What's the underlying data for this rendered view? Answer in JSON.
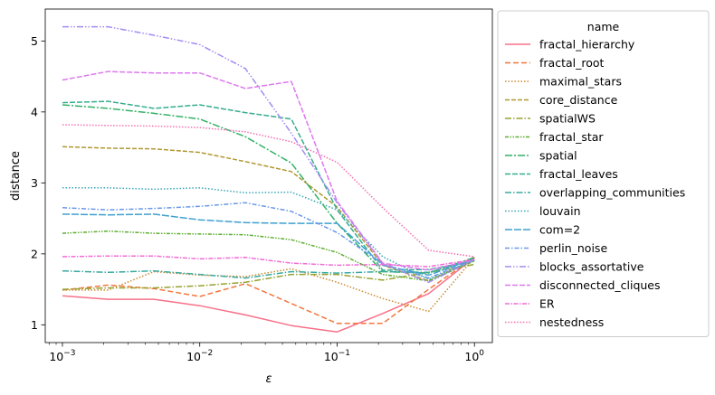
{
  "chart_data": {
    "type": "line",
    "xlabel": "ε",
    "ylabel": "distance",
    "xscale": "log",
    "xlim": [
      0.00075,
      1.35
    ],
    "ylim": [
      0.75,
      5.45
    ],
    "x": [
      0.001,
      0.00215,
      0.00464,
      0.01,
      0.0215,
      0.0464,
      0.1,
      0.215,
      0.464,
      1.0
    ],
    "x_ticks": [
      {
        "value": 0.001,
        "base": "10",
        "exp": "−3"
      },
      {
        "value": 0.01,
        "base": "10",
        "exp": "−2"
      },
      {
        "value": 0.1,
        "base": "10",
        "exp": "−1"
      },
      {
        "value": 1,
        "base": "10",
        "exp": "0"
      }
    ],
    "y_ticks": [
      1,
      2,
      3,
      4,
      5
    ],
    "y_tick_labels": [
      "1",
      "2",
      "3",
      "4",
      "5"
    ],
    "legend": {
      "title": "name",
      "placement": "right-outside"
    },
    "series": [
      {
        "name": "fractal_hierarchy",
        "color": "#f77189",
        "dash": "",
        "values": [
          1.41,
          1.36,
          1.36,
          1.27,
          1.14,
          0.99,
          0.9,
          1.16,
          1.44,
          1.95
        ]
      },
      {
        "name": "fractal_root",
        "color": "#f3763d",
        "dash": "6,3",
        "values": [
          1.49,
          1.56,
          1.51,
          1.4,
          1.58,
          1.3,
          1.02,
          1.02,
          1.5,
          1.95
        ]
      },
      {
        "name": "maximal_stars",
        "color": "#cc8a30",
        "dash": "1.5,2",
        "values": [
          1.49,
          1.49,
          1.75,
          1.7,
          1.68,
          1.79,
          1.6,
          1.37,
          1.19,
          1.95
        ]
      },
      {
        "name": "core_distance",
        "color": "#b09831",
        "dash": "5,2",
        "values": [
          3.51,
          3.49,
          3.48,
          3.43,
          3.3,
          3.16,
          2.66,
          1.84,
          1.62,
          1.92
        ]
      },
      {
        "name": "spatialWS",
        "color": "#96a231",
        "dash": "7,2,1.5,2",
        "values": [
          1.5,
          1.52,
          1.52,
          1.55,
          1.6,
          1.71,
          1.71,
          1.63,
          1.74,
          1.85
        ]
      },
      {
        "name": "fractal_star",
        "color": "#5dae31",
        "dash": "4,1.5,1.5,1.5,1.5,1.5",
        "values": [
          2.29,
          2.32,
          2.29,
          2.28,
          2.27,
          2.2,
          2.02,
          1.71,
          1.62,
          1.9
        ]
      },
      {
        "name": "spatial",
        "color": "#32b166",
        "dash": "8,2,2,2",
        "values": [
          4.1,
          4.05,
          3.98,
          3.9,
          3.65,
          3.28,
          2.43,
          1.75,
          1.73,
          1.95
        ]
      },
      {
        "name": "fractal_leaves",
        "color": "#36ad8e",
        "dash": "6,2",
        "values": [
          4.13,
          4.15,
          4.05,
          4.1,
          3.99,
          3.9,
          2.62,
          1.77,
          1.78,
          1.9
        ]
      },
      {
        "name": "overlapping_communities",
        "color": "#38aaa1",
        "dash": "7,2,1.5,2",
        "values": [
          1.76,
          1.74,
          1.76,
          1.71,
          1.66,
          1.75,
          1.73,
          1.75,
          1.74,
          1.92
        ]
      },
      {
        "name": "louvain",
        "color": "#3aa6b6",
        "dash": "1.5,2",
        "values": [
          2.93,
          2.93,
          2.91,
          2.93,
          2.86,
          2.87,
          2.62,
          1.96,
          1.64,
          1.91
        ]
      },
      {
        "name": "com=2",
        "color": "#3ea0d0",
        "dash": "8,2",
        "values": [
          2.56,
          2.55,
          2.56,
          2.48,
          2.44,
          2.43,
          2.43,
          1.84,
          1.7,
          1.93
        ]
      },
      {
        "name": "perlin_noise",
        "color": "#6a98ea",
        "dash": "5,2,1.5,2",
        "values": [
          2.65,
          2.62,
          2.64,
          2.67,
          2.72,
          2.6,
          2.3,
          1.86,
          1.66,
          1.92
        ]
      },
      {
        "name": "blocks_assortative",
        "color": "#a38cf3",
        "dash": "7,2,1.5,2,1.5,2",
        "values": [
          5.2,
          5.2,
          5.08,
          4.95,
          4.61,
          3.7,
          2.72,
          1.86,
          1.6,
          1.92
        ]
      },
      {
        "name": "disconnected_cliques",
        "color": "#dd78ef",
        "dash": "6,2",
        "values": [
          4.45,
          4.57,
          4.55,
          4.55,
          4.33,
          4.43,
          2.74,
          1.87,
          1.77,
          1.92
        ]
      },
      {
        "name": "ER",
        "color": "#f16cd5",
        "dash": "5,1.5,1.5,1.5",
        "values": [
          1.96,
          1.97,
          1.97,
          1.93,
          1.95,
          1.87,
          1.84,
          1.85,
          1.82,
          1.92
        ]
      },
      {
        "name": "nestedness",
        "color": "#f56fb0",
        "dash": "1.5,1.8",
        "values": [
          3.82,
          3.81,
          3.8,
          3.78,
          3.72,
          3.58,
          3.29,
          2.65,
          2.05,
          1.96
        ]
      }
    ]
  }
}
